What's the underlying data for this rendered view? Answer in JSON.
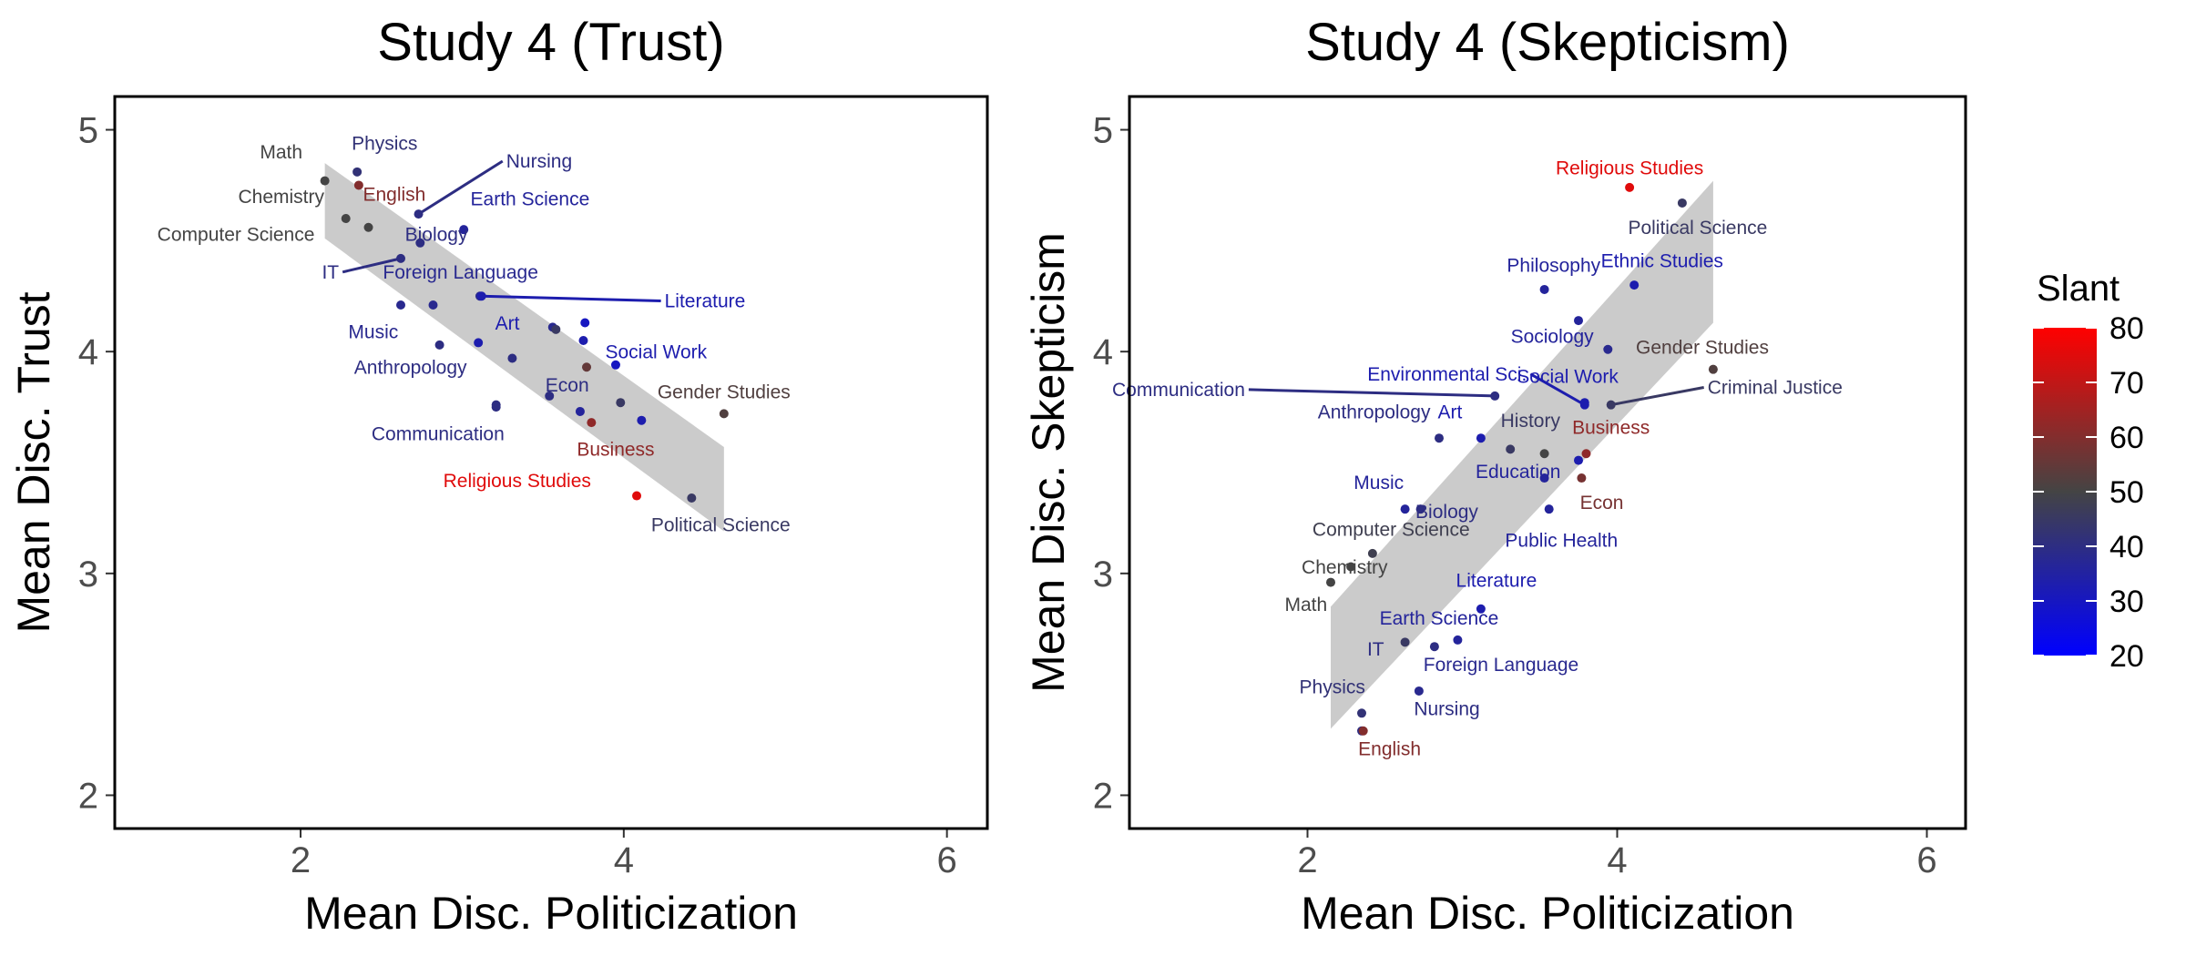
{
  "chart_data": [
    {
      "type": "scatter",
      "title": "Study 4 (Trust)",
      "xlabel": "Mean Disc. Politicization",
      "ylabel": "Mean Disc. Trust",
      "xlim": [
        0.85,
        6.25
      ],
      "ylim": [
        1.85,
        5.15
      ],
      "xticks": [
        2,
        4,
        6
      ],
      "yticks": [
        2,
        3,
        4,
        5
      ],
      "xtick_labels": [
        "2",
        "4",
        "6"
      ],
      "ytick_labels": [
        "2",
        "3",
        "4",
        "5"
      ],
      "grid": false,
      "trend_band": {
        "x": [
          2.15,
          4.62
        ],
        "fit_y": [
          4.68,
          3.38
        ],
        "upper": [
          4.85,
          3.57
        ],
        "lower": [
          4.51,
          3.19
        ]
      },
      "points": [
        {
          "label": "Math",
          "x": 2.15,
          "y": 4.77,
          "slant": 50,
          "label_x": 1.88,
          "label_y": 4.87
        },
        {
          "label": "Physics",
          "x": 2.35,
          "y": 4.81,
          "slant": 42,
          "label_x": 2.52,
          "label_y": 4.91
        },
        {
          "label": "English",
          "x": 2.36,
          "y": 4.75,
          "slant": 60,
          "label_x": 2.58,
          "label_y": 4.68
        },
        {
          "label": "Nursing",
          "x": 2.73,
          "y": 4.62,
          "slant": 40,
          "label_x": 3.25,
          "label_y": 4.83,
          "leader": true
        },
        {
          "label": "Chemistry",
          "x": 2.28,
          "y": 4.6,
          "slant": 50,
          "label_x": 1.88,
          "label_y": 4.67
        },
        {
          "label": "Earth Science",
          "x": 3.01,
          "y": 4.55,
          "slant": 36,
          "label_x": 3.42,
          "label_y": 4.66
        },
        {
          "label": "Computer Science",
          "x": 2.42,
          "y": 4.56,
          "slant": 50,
          "label_x": 1.6,
          "label_y": 4.5
        },
        {
          "label": "Biology",
          "x": 2.74,
          "y": 4.49,
          "slant": 40,
          "label_x": 2.84,
          "label_y": 4.5
        },
        {
          "label": "IT",
          "x": 2.62,
          "y": 4.42,
          "slant": 40,
          "label_x": 2.26,
          "label_y": 4.33,
          "leader": true
        },
        {
          "label": "Foreign Language",
          "x": 3.11,
          "y": 4.25,
          "slant": 38,
          "label_x": 2.99,
          "label_y": 4.33
        },
        {
          "label": "Literature",
          "x": 3.12,
          "y": 4.25,
          "slant": 33,
          "label_x": 4.23,
          "label_y": 4.2,
          "leader": true
        },
        {
          "label": "Music",
          "x": 2.62,
          "y": 4.21,
          "slant": 38,
          "label_x": 2.45,
          "label_y": 4.06
        },
        {
          "label": null,
          "x": 2.82,
          "y": 4.21,
          "slant": 38
        },
        {
          "label": "Art",
          "x": 3.1,
          "y": 4.04,
          "slant": 33,
          "label_x": 3.28,
          "label_y": 4.1
        },
        {
          "label": null,
          "x": 3.56,
          "y": 4.11,
          "slant": 38
        },
        {
          "label": null,
          "x": 3.58,
          "y": 4.1,
          "slant": 45
        },
        {
          "label": null,
          "x": 3.76,
          "y": 4.13,
          "slant": 30
        },
        {
          "label": "Social Work",
          "x": 3.75,
          "y": 4.05,
          "slant": 33,
          "label_x": 4.2,
          "label_y": 3.97
        },
        {
          "label": "Anthropology",
          "x": 2.86,
          "y": 4.03,
          "slant": 40,
          "label_x": 2.68,
          "label_y": 3.9
        },
        {
          "label": null,
          "x": 3.31,
          "y": 3.97,
          "slant": 40
        },
        {
          "label": null,
          "x": 3.77,
          "y": 3.93,
          "slant": 55
        },
        {
          "label": null,
          "x": 3.95,
          "y": 3.94,
          "slant": 30
        },
        {
          "label": "Econ",
          "x": 3.54,
          "y": 3.8,
          "slant": 40,
          "label_x": 3.65,
          "label_y": 3.82
        },
        {
          "label": null,
          "x": 3.21,
          "y": 3.75,
          "slant": 40
        },
        {
          "label": null,
          "x": 3.73,
          "y": 3.73,
          "slant": 36
        },
        {
          "label": "Gender Studies",
          "x": 4.62,
          "y": 3.72,
          "slant": 52,
          "label_x": 4.62,
          "label_y": 3.79
        },
        {
          "label": null,
          "x": 3.98,
          "y": 3.77,
          "slant": 45
        },
        {
          "label": "Communication",
          "x": 3.21,
          "y": 3.76,
          "slant": 40,
          "label_x": 2.85,
          "label_y": 3.6
        },
        {
          "label": "Business",
          "x": 3.8,
          "y": 3.68,
          "slant": 62,
          "label_x": 3.95,
          "label_y": 3.53
        },
        {
          "label": null,
          "x": 4.11,
          "y": 3.69,
          "slant": 33
        },
        {
          "label": "Religious Studies",
          "x": 4.08,
          "y": 3.35,
          "slant": 75,
          "label_x": 3.34,
          "label_y": 3.39
        },
        {
          "label": "Political Science",
          "x": 4.42,
          "y": 3.34,
          "slant": 45,
          "label_x": 4.6,
          "label_y": 3.19
        }
      ]
    },
    {
      "type": "scatter",
      "title": "Study 4 (Skepticism)",
      "xlabel": "Mean Disc. Politicization",
      "ylabel": "Mean Disc. Skepticism",
      "xlim": [
        0.85,
        6.25
      ],
      "ylim": [
        1.85,
        5.15
      ],
      "xticks": [
        2,
        4,
        6
      ],
      "yticks": [
        2,
        3,
        4,
        5
      ],
      "xtick_labels": [
        "2",
        "4",
        "6"
      ],
      "ytick_labels": [
        "2",
        "3",
        "4",
        "5"
      ],
      "grid": false,
      "trend_band": {
        "x": [
          2.15,
          4.62
        ],
        "fit_y": [
          2.57,
          4.45
        ],
        "upper": [
          2.85,
          4.77
        ],
        "lower": [
          2.3,
          4.13
        ]
      },
      "points": [
        {
          "label": "Religious Studies",
          "x": 4.08,
          "y": 4.74,
          "slant": 75,
          "label_x": 4.08,
          "label_y": 4.8
        },
        {
          "label": "Political Science",
          "x": 4.42,
          "y": 4.67,
          "slant": 45,
          "label_x": 4.52,
          "label_y": 4.53
        },
        {
          "label": "Philosophy",
          "x": 3.53,
          "y": 4.28,
          "slant": 36,
          "label_x": 3.59,
          "label_y": 4.36
        },
        {
          "label": "Ethnic Studies",
          "x": 4.11,
          "y": 4.3,
          "slant": 33,
          "label_x": 4.29,
          "label_y": 4.38
        },
        {
          "label": "Sociology",
          "x": 3.75,
          "y": 4.14,
          "slant": 36,
          "label_x": 3.58,
          "label_y": 4.04
        },
        {
          "label": "Gender Studies",
          "x": 4.62,
          "y": 3.92,
          "slant": 52,
          "label_x": 4.55,
          "label_y": 3.99
        },
        {
          "label": null,
          "x": 3.94,
          "y": 4.01,
          "slant": 38
        },
        {
          "label": "Communication",
          "x": 3.21,
          "y": 3.8,
          "slant": 40,
          "label_x": 1.62,
          "label_y": 3.8,
          "leader": true
        },
        {
          "label": "Environmental Sci.",
          "x": 3.79,
          "y": 3.76,
          "slant": 33,
          "label_x": 3.44,
          "label_y": 3.87,
          "leader": true
        },
        {
          "label": "Social Work",
          "x": 3.79,
          "y": 3.77,
          "slant": 33,
          "label_x": 3.68,
          "label_y": 3.86
        },
        {
          "label": "Criminal Justice",
          "x": 3.96,
          "y": 3.76,
          "slant": 45,
          "label_x": 4.56,
          "label_y": 3.81,
          "leader": true
        },
        {
          "label": "Anthropology",
          "x": 2.85,
          "y": 3.61,
          "slant": 40,
          "label_x": 2.43,
          "label_y": 3.7
        },
        {
          "label": "Art",
          "x": 3.12,
          "y": 3.61,
          "slant": 33,
          "label_x": 2.92,
          "label_y": 3.7
        },
        {
          "label": "History",
          "x": 3.31,
          "y": 3.56,
          "slant": 45,
          "label_x": 3.44,
          "label_y": 3.66
        },
        {
          "label": "Business",
          "x": 3.8,
          "y": 3.54,
          "slant": 62,
          "label_x": 3.96,
          "label_y": 3.63
        },
        {
          "label": null,
          "x": 3.53,
          "y": 3.54,
          "slant": 50
        },
        {
          "label": null,
          "x": 3.75,
          "y": 3.51,
          "slant": 33
        },
        {
          "label": "Education",
          "x": 3.53,
          "y": 3.43,
          "slant": 36,
          "label_x": 3.36,
          "label_y": 3.43
        },
        {
          "label": "Econ",
          "x": 3.77,
          "y": 3.43,
          "slant": 58,
          "label_x": 3.9,
          "label_y": 3.29
        },
        {
          "label": "Music",
          "x": 2.63,
          "y": 3.29,
          "slant": 36,
          "label_x": 2.46,
          "label_y": 3.38
        },
        {
          "label": "Biology",
          "x": 2.73,
          "y": 3.29,
          "slant": 40,
          "label_x": 2.9,
          "label_y": 3.25
        },
        {
          "label": "Public Health",
          "x": 3.56,
          "y": 3.29,
          "slant": 36,
          "label_x": 3.64,
          "label_y": 3.12
        },
        {
          "label": "Computer Science",
          "x": 2.42,
          "y": 3.09,
          "slant": 48,
          "label_x": 2.54,
          "label_y": 3.17
        },
        {
          "label": "Chemistry",
          "x": 2.28,
          "y": 3.03,
          "slant": 50,
          "label_x": 2.24,
          "label_y": 3.0
        },
        {
          "label": "Math",
          "x": 2.15,
          "y": 2.96,
          "slant": 50,
          "label_x": 1.99,
          "label_y": 2.83
        },
        {
          "label": "Literature",
          "x": 3.12,
          "y": 2.84,
          "slant": 33,
          "label_x": 3.22,
          "label_y": 2.94
        },
        {
          "label": "Earth Science",
          "x": 2.97,
          "y": 2.7,
          "slant": 36,
          "label_x": 2.85,
          "label_y": 2.77
        },
        {
          "label": null,
          "x": 2.63,
          "y": 2.69,
          "slant": 45
        },
        {
          "label": "IT",
          "x": 2.82,
          "y": 2.67,
          "slant": 40,
          "label_x": 2.44,
          "label_y": 2.63
        },
        {
          "label": "Foreign Language",
          "x": 2.72,
          "y": 2.47,
          "slant": 38,
          "label_x": 3.25,
          "label_y": 2.56
        },
        {
          "label": "Physics",
          "x": 2.35,
          "y": 2.37,
          "slant": 42,
          "label_x": 2.16,
          "label_y": 2.46
        },
        {
          "label": "Nursing",
          "x": 2.35,
          "y": 2.29,
          "slant": 40,
          "label_x": 2.9,
          "label_y": 2.36
        },
        {
          "label": "English",
          "x": 2.36,
          "y": 2.29,
          "slant": 60,
          "label_x": 2.53,
          "label_y": 2.18
        }
      ]
    }
  ],
  "legend": {
    "title": "Slant",
    "min": 20,
    "max": 80,
    "ticks": [
      20,
      30,
      40,
      50,
      60,
      70,
      80
    ],
    "tick_labels": [
      "20",
      "30",
      "40",
      "50",
      "60",
      "70",
      "80"
    ],
    "colors": {
      "low": "#0000ff",
      "mid": "#444444",
      "high": "#ff0000"
    },
    "midpoint": 50
  }
}
